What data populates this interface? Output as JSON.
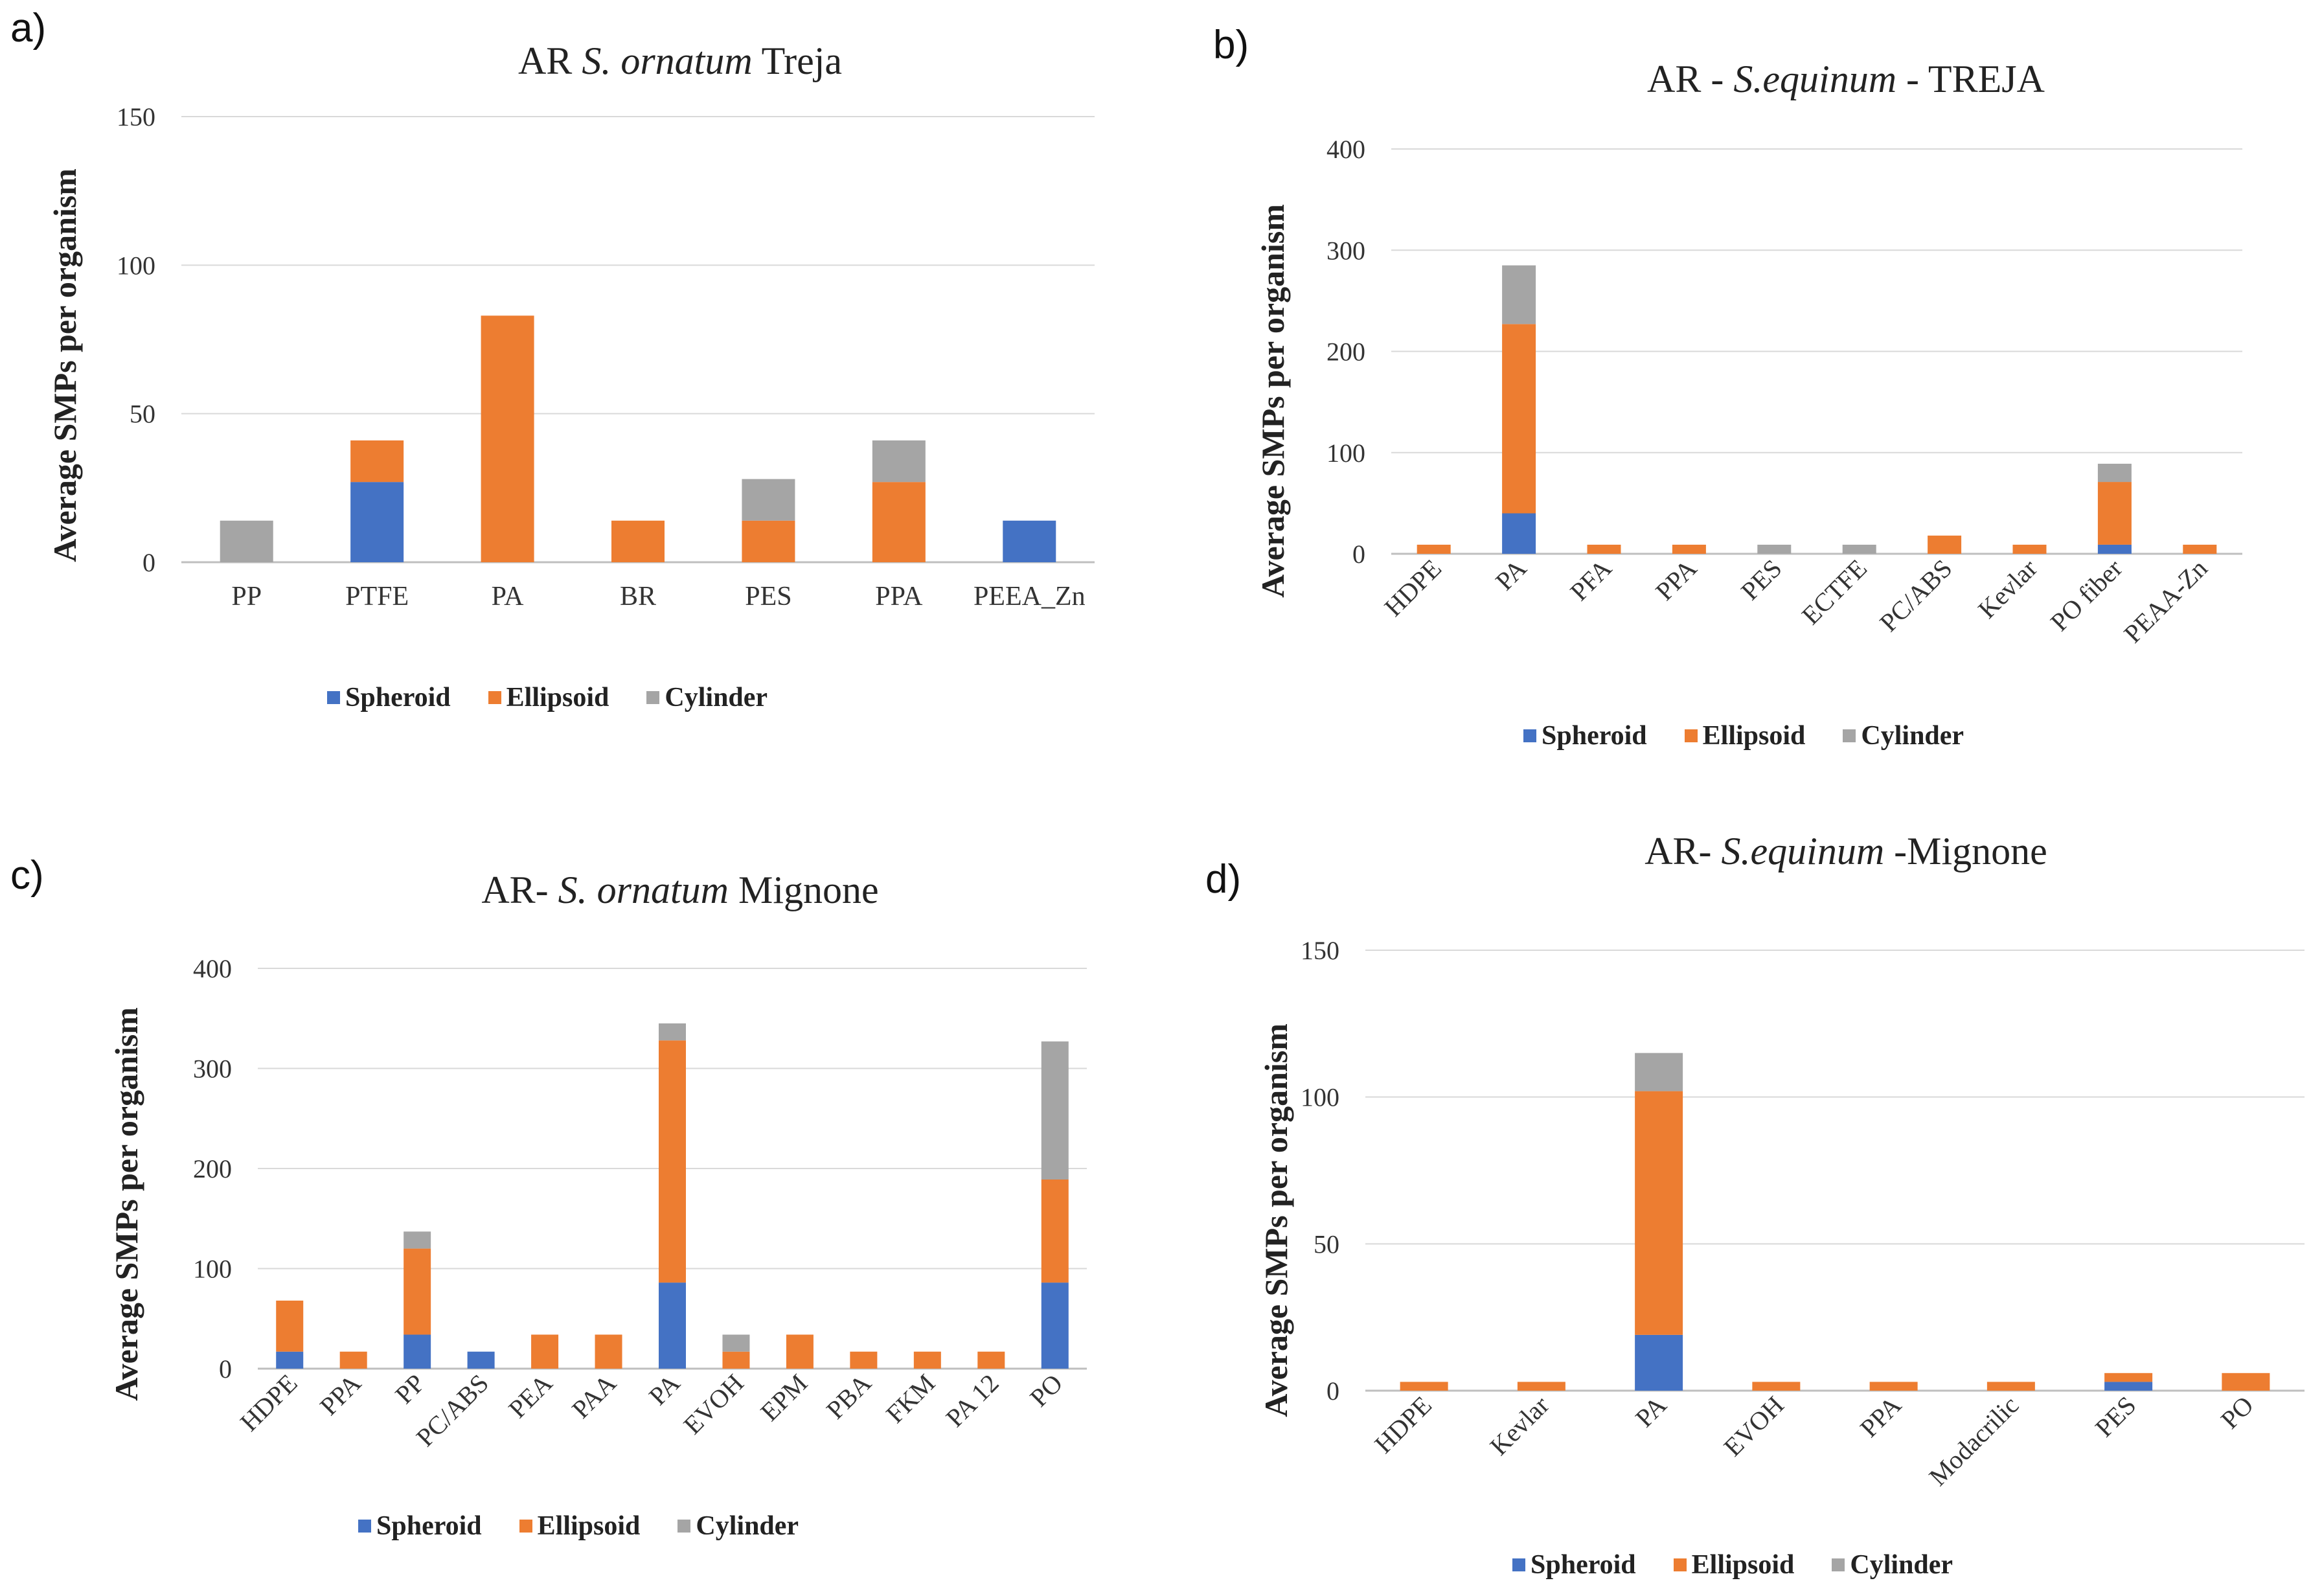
{
  "chart_data": [
    {
      "panel": "a)",
      "type": "bar",
      "stacked": true,
      "title": [
        "AR ",
        "S. ornatum",
        " Treja"
      ],
      "ylabel": "Average SMPs per organism",
      "xlabel": "",
      "ylim": [
        0,
        150
      ],
      "yticks": [
        0,
        50,
        100,
        150
      ],
      "grid": true,
      "legend": "bottom",
      "categories": [
        "PP",
        "PTFE",
        "PA",
        "BR",
        "PES",
        "PPA",
        "PEEA_Zn"
      ],
      "series": [
        {
          "name": "Spheroid",
          "color": "#4472C4",
          "values": [
            0,
            27,
            0,
            0,
            0,
            0,
            14
          ]
        },
        {
          "name": "Ellipsoid",
          "color": "#ED7D31",
          "values": [
            0,
            14,
            83,
            14,
            14,
            27,
            0
          ]
        },
        {
          "name": "Cylinder",
          "color": "#A5A5A5",
          "values": [
            14,
            0,
            0,
            0,
            14,
            14,
            0
          ]
        }
      ]
    },
    {
      "panel": "b)",
      "type": "bar",
      "stacked": true,
      "title": [
        "AR - ",
        "S.equinum",
        " - TREJA"
      ],
      "ylabel": "Average SMPs per organism",
      "xlabel": "",
      "ylim": [
        0,
        400
      ],
      "yticks": [
        0,
        100,
        200,
        300,
        400
      ],
      "grid": true,
      "legend": "bottom",
      "categories": [
        "HDPE",
        "PA",
        "PFA",
        "PPA",
        "PES",
        "ECTFE",
        "PC/ABS",
        "Kevlar",
        "PO fiber",
        "PEAA-Zn"
      ],
      "series": [
        {
          "name": "Spheroid",
          "color": "#4472C4",
          "values": [
            0,
            40,
            0,
            0,
            0,
            0,
            0,
            0,
            9,
            0
          ]
        },
        {
          "name": "Ellipsoid",
          "color": "#ED7D31",
          "values": [
            9,
            187,
            9,
            9,
            0,
            0,
            18,
            9,
            62,
            9
          ]
        },
        {
          "name": "Cylinder",
          "color": "#A5A5A5",
          "values": [
            0,
            58,
            0,
            0,
            9,
            9,
            0,
            0,
            18,
            0
          ]
        }
      ]
    },
    {
      "panel": "c)",
      "type": "bar",
      "stacked": true,
      "title": [
        "AR- ",
        "S. ornatum",
        " Mignone"
      ],
      "ylabel": "Average SMPs per organism",
      "xlabel": "",
      "ylim": [
        0,
        400
      ],
      "yticks": [
        0,
        100,
        200,
        300,
        400
      ],
      "grid": true,
      "legend": "bottom",
      "categories": [
        "HDPE",
        "PPA",
        "PP",
        "PC/ABS",
        "PEA",
        "PAA",
        "PA",
        "EVOH",
        "EPM",
        "PBA",
        "FKM",
        "PA 12",
        "PO"
      ],
      "series": [
        {
          "name": "Spheroid",
          "color": "#4472C4",
          "values": [
            17,
            0,
            34,
            17,
            0,
            0,
            86,
            0,
            0,
            0,
            0,
            0,
            86
          ]
        },
        {
          "name": "Ellipsoid",
          "color": "#ED7D31",
          "values": [
            51,
            17,
            86,
            0,
            34,
            34,
            242,
            17,
            34,
            17,
            17,
            17,
            103
          ]
        },
        {
          "name": "Cylinder",
          "color": "#A5A5A5",
          "values": [
            0,
            0,
            17,
            0,
            0,
            0,
            17,
            17,
            0,
            0,
            0,
            0,
            138
          ]
        }
      ]
    },
    {
      "panel": "d)",
      "type": "bar",
      "stacked": true,
      "title": [
        "AR- ",
        "S.equinum",
        " -Mignone"
      ],
      "ylabel": "Average SMPs per organism",
      "xlabel": "",
      "ylim": [
        0,
        150
      ],
      "yticks": [
        0,
        50,
        100,
        150
      ],
      "grid": true,
      "legend": "bottom",
      "categories": [
        "HDPE",
        "Kevlar",
        "PA",
        "EVOH",
        "PPA",
        "Modacrilic",
        "PES",
        "PO"
      ],
      "series": [
        {
          "name": "Spheroid",
          "color": "#4472C4",
          "values": [
            0,
            0,
            19,
            0,
            0,
            0,
            3,
            0
          ]
        },
        {
          "name": "Ellipsoid",
          "color": "#ED7D31",
          "values": [
            3,
            3,
            83,
            3,
            3,
            3,
            3,
            6
          ]
        },
        {
          "name": "Cylinder",
          "color": "#A5A5A5",
          "values": [
            0,
            0,
            13,
            0,
            0,
            0,
            0,
            0
          ]
        }
      ]
    }
  ],
  "colors": {
    "spheroid": "#4472C4",
    "ellipsoid": "#ED7D31",
    "cylinder": "#A5A5A5",
    "grid": "#D9D9D9",
    "axis": "#BFBFBF"
  }
}
